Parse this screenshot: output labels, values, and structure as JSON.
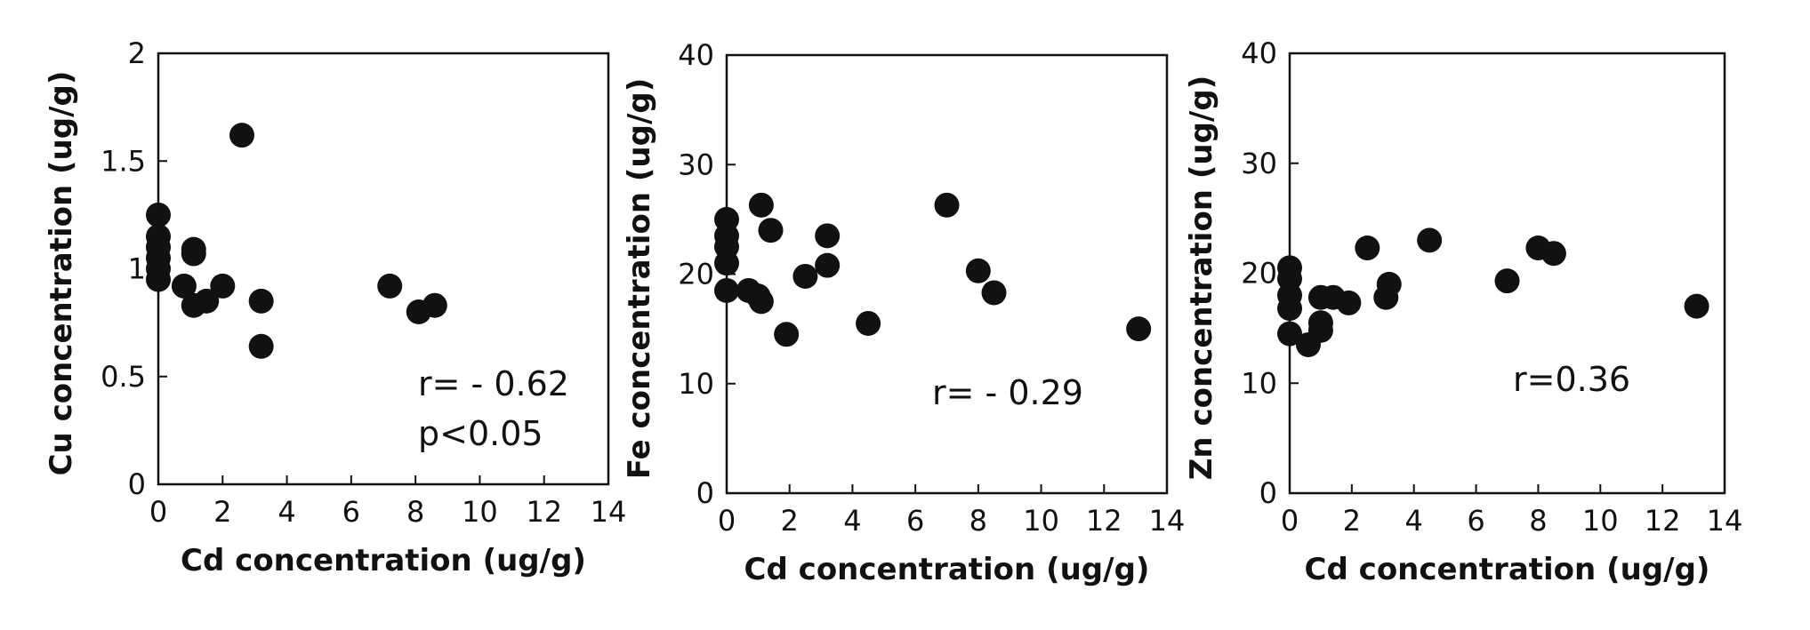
{
  "chart_data": [
    {
      "type": "scatter",
      "xlabel": "Cd concentration (ug/g)",
      "ylabel": "Cu concentration (ug/g)",
      "xlim": [
        0,
        14
      ],
      "ylim": [
        0,
        2
      ],
      "xticks": [
        "0",
        "2",
        "4",
        "6",
        "8",
        "10",
        "12",
        "14"
      ],
      "yticks": [
        "0",
        "0.5",
        "1",
        "1.5",
        "2"
      ],
      "annotation": [
        "r= - 0.62",
        "p<0.05"
      ],
      "grid": false,
      "marker_color": "#111111",
      "points": [
        {
          "x": 0.0,
          "y": 1.25
        },
        {
          "x": 0.0,
          "y": 1.15
        },
        {
          "x": 0.0,
          "y": 1.1
        },
        {
          "x": 0.0,
          "y": 1.05
        },
        {
          "x": 0.0,
          "y": 1.0
        },
        {
          "x": 0.0,
          "y": 0.95
        },
        {
          "x": 0.8,
          "y": 0.92
        },
        {
          "x": 1.1,
          "y": 1.09
        },
        {
          "x": 1.1,
          "y": 1.07
        },
        {
          "x": 1.1,
          "y": 0.83
        },
        {
          "x": 1.5,
          "y": 0.85
        },
        {
          "x": 2.0,
          "y": 0.92
        },
        {
          "x": 2.6,
          "y": 1.62
        },
        {
          "x": 3.2,
          "y": 0.85
        },
        {
          "x": 3.2,
          "y": 0.64
        },
        {
          "x": 7.2,
          "y": 0.92
        },
        {
          "x": 8.1,
          "y": 0.8
        },
        {
          "x": 8.6,
          "y": 0.83
        }
      ]
    },
    {
      "type": "scatter",
      "xlabel": "Cd concentration (ug/g)",
      "ylabel": "Fe concentration (ug/g)",
      "xlim": [
        0,
        14
      ],
      "ylim": [
        0,
        40
      ],
      "xticks": [
        "0",
        "2",
        "4",
        "6",
        "8",
        "10",
        "12",
        "14"
      ],
      "yticks": [
        "0",
        "10",
        "20",
        "30",
        "40"
      ],
      "annotation": [
        "r= - 0.29"
      ],
      "grid": false,
      "marker_color": "#111111",
      "points": [
        {
          "x": 0.0,
          "y": 25.0
        },
        {
          "x": 0.0,
          "y": 23.5
        },
        {
          "x": 0.0,
          "y": 22.5
        },
        {
          "x": 0.0,
          "y": 21.0
        },
        {
          "x": 0.0,
          "y": 18.5
        },
        {
          "x": 0.7,
          "y": 18.5
        },
        {
          "x": 1.0,
          "y": 18.0
        },
        {
          "x": 1.1,
          "y": 17.5
        },
        {
          "x": 1.1,
          "y": 26.3
        },
        {
          "x": 1.4,
          "y": 24.0
        },
        {
          "x": 1.9,
          "y": 14.5
        },
        {
          "x": 2.5,
          "y": 19.8
        },
        {
          "x": 3.2,
          "y": 23.5
        },
        {
          "x": 3.2,
          "y": 20.8
        },
        {
          "x": 4.5,
          "y": 15.5
        },
        {
          "x": 7.0,
          "y": 26.3
        },
        {
          "x": 8.0,
          "y": 20.3
        },
        {
          "x": 8.5,
          "y": 18.3
        },
        {
          "x": 13.1,
          "y": 15.0
        }
      ]
    },
    {
      "type": "scatter",
      "xlabel": "Cd concentration (ug/g)",
      "ylabel": "Zn concentration (ug/g)",
      "xlim": [
        0,
        14
      ],
      "ylim": [
        0,
        40
      ],
      "xticks": [
        "0",
        "2",
        "4",
        "6",
        "8",
        "10",
        "12",
        "14"
      ],
      "yticks": [
        "0",
        "10",
        "20",
        "30",
        "40"
      ],
      "annotation": [
        "r=0.36"
      ],
      "grid": false,
      "marker_color": "#111111",
      "points": [
        {
          "x": 0.0,
          "y": 20.5
        },
        {
          "x": 0.0,
          "y": 19.5
        },
        {
          "x": 0.0,
          "y": 18.0
        },
        {
          "x": 0.0,
          "y": 16.8
        },
        {
          "x": 0.0,
          "y": 14.5
        },
        {
          "x": 0.6,
          "y": 13.5
        },
        {
          "x": 1.0,
          "y": 14.8
        },
        {
          "x": 1.0,
          "y": 15.5
        },
        {
          "x": 1.0,
          "y": 17.8
        },
        {
          "x": 1.4,
          "y": 17.8
        },
        {
          "x": 1.9,
          "y": 17.3
        },
        {
          "x": 2.5,
          "y": 22.3
        },
        {
          "x": 3.1,
          "y": 17.8
        },
        {
          "x": 3.2,
          "y": 19.0
        },
        {
          "x": 4.5,
          "y": 23.0
        },
        {
          "x": 7.0,
          "y": 19.3
        },
        {
          "x": 8.0,
          "y": 22.3
        },
        {
          "x": 8.5,
          "y": 21.8
        },
        {
          "x": 13.1,
          "y": 17.0
        }
      ]
    }
  ]
}
